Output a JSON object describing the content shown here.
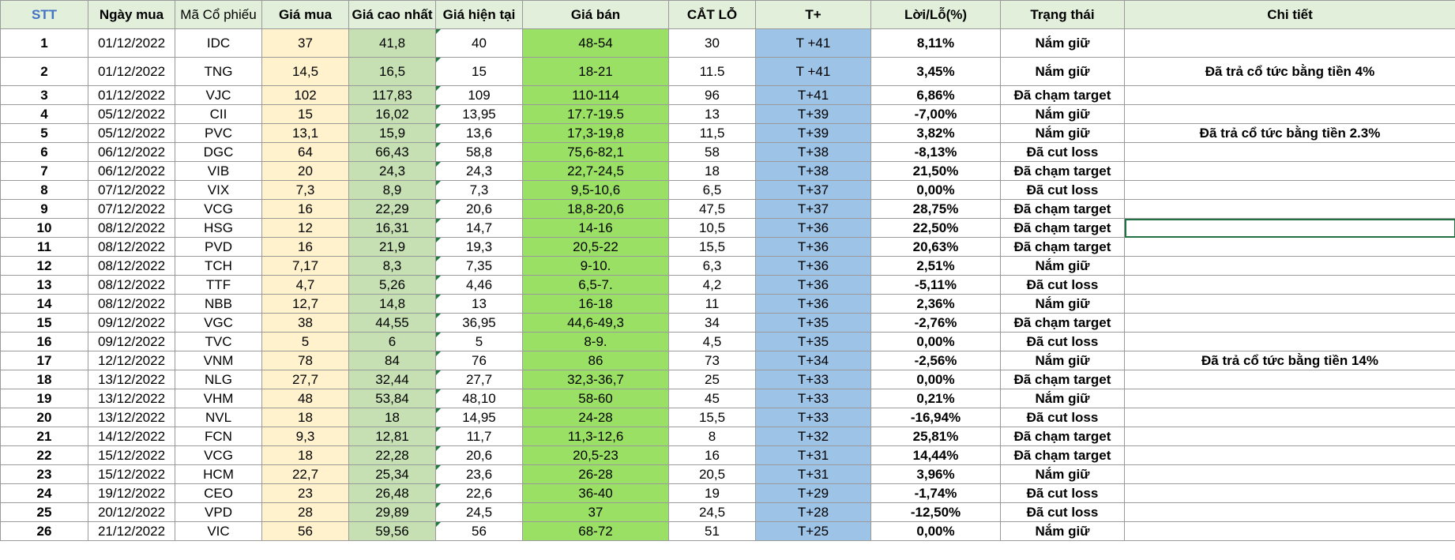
{
  "headers": [
    "STT",
    "Ngày mua",
    "Mã Cổ phiếu",
    "Giá mua",
    "Giá cao nhất",
    "Giá hiện tại",
    "Giá bán",
    "CẮT LỖ",
    "T+",
    "Lời/Lỗ(%)",
    "Trạng thái",
    "Chi tiết"
  ],
  "rows": [
    {
      "stt": "1",
      "date": "01/12/2022",
      "code": "IDC",
      "buy": "37",
      "high": "41,8",
      "current": "40",
      "sell": "48-54",
      "stop": "30",
      "t": "T +41",
      "pl": "8,11%",
      "pl_sign": "pos",
      "status": "Nắm giữ",
      "status_type": "hold",
      "detail": ""
    },
    {
      "stt": "2",
      "date": "01/12/2022",
      "code": "TNG",
      "buy": "14,5",
      "high": "16,5",
      "current": "15",
      "sell": "18-21",
      "stop": "11.5",
      "t": "T +41",
      "pl": "3,45%",
      "pl_sign": "pos",
      "status": "Nắm giữ",
      "status_type": "hold",
      "detail": "Đã trả cổ tức bằng tiền 4%"
    },
    {
      "stt": "3",
      "date": "01/12/2022",
      "code": "VJC",
      "buy": "102",
      "high": "117,83",
      "current": "109",
      "sell": "110-114",
      "stop": "96",
      "t": "T+41",
      "pl": "6,86%",
      "pl_sign": "pos",
      "status": "Đã chạm target",
      "status_type": "target",
      "detail": ""
    },
    {
      "stt": "4",
      "date": "05/12/2022",
      "code": "CII",
      "buy": "15",
      "high": "16,02",
      "current": "13,95",
      "sell": "17.7-19.5",
      "stop": "13",
      "t": "T+39",
      "pl": "-7,00%",
      "pl_sign": "neg",
      "status": "Nắm giữ",
      "status_type": "hold",
      "detail": ""
    },
    {
      "stt": "5",
      "date": "05/12/2022",
      "code": "PVC",
      "buy": "13,1",
      "high": "15,9",
      "current": "13,6",
      "sell": "17,3-19,8",
      "stop": "11,5",
      "t": "T+39",
      "pl": "3,82%",
      "pl_sign": "pos",
      "status": "Nắm giữ",
      "status_type": "hold",
      "detail": "Đã trả cổ tức bằng tiền 2.3%"
    },
    {
      "stt": "6",
      "date": "06/12/2022",
      "code": "DGC",
      "buy": "64",
      "high": "66,43",
      "current": "58,8",
      "sell": "75,6-82,1",
      "stop": "58",
      "t": "T+38",
      "pl": "-8,13%",
      "pl_sign": "neg",
      "status": "Đã cut loss",
      "status_type": "cut",
      "detail": ""
    },
    {
      "stt": "7",
      "date": "06/12/2022",
      "code": "VIB",
      "buy": "20",
      "high": "24,3",
      "current": "24,3",
      "sell": "22,7-24,5",
      "stop": "18",
      "t": "T+38",
      "pl": "21,50%",
      "pl_sign": "pos",
      "status": "Đã chạm target",
      "status_type": "target",
      "detail": ""
    },
    {
      "stt": "8",
      "date": "07/12/2022",
      "code": "VIX",
      "buy": "7,3",
      "high": "8,9",
      "current": "7,3",
      "sell": "9,5-10,6",
      "stop": "6,5",
      "t": "T+37",
      "pl": "0,00%",
      "pl_sign": "pos",
      "status": "Đã  cut loss",
      "status_type": "cut",
      "detail": ""
    },
    {
      "stt": "9",
      "date": "07/12/2022",
      "code": "VCG",
      "buy": "16",
      "high": "22,29",
      "current": "20,6",
      "sell": "18,8-20,6",
      "stop": "47,5",
      "t": "T+37",
      "pl": "28,75%",
      "pl_sign": "pos",
      "status": "Đã chạm target",
      "status_type": "target",
      "detail": ""
    },
    {
      "stt": "10",
      "date": "08/12/2022",
      "code": "HSG",
      "buy": "12",
      "high": "16,31",
      "current": "14,7",
      "sell": "14-16",
      "stop": "10,5",
      "t": "T+36",
      "pl": "22,50%",
      "pl_sign": "pos",
      "status": "Đã chạm target",
      "status_type": "target",
      "detail": ""
    },
    {
      "stt": "11",
      "date": "08/12/2022",
      "code": "PVD",
      "buy": "16",
      "high": "21,9",
      "current": "19,3",
      "sell": "20,5-22",
      "stop": "15,5",
      "t": "T+36",
      "pl": "20,63%",
      "pl_sign": "pos",
      "status": "Đã chạm target",
      "status_type": "target",
      "detail": ""
    },
    {
      "stt": "12",
      "date": "08/12/2022",
      "code": "TCH",
      "buy": "7,17",
      "high": "8,3",
      "current": "7,35",
      "sell": "9-10.",
      "stop": "6,3",
      "t": "T+36",
      "pl": "2,51%",
      "pl_sign": "pos",
      "status": "Nắm giữ",
      "status_type": "hold",
      "detail": ""
    },
    {
      "stt": "13",
      "date": "08/12/2022",
      "code": "TTF",
      "buy": "4,7",
      "high": "5,26",
      "current": "4,46",
      "sell": "6,5-7.",
      "stop": "4,2",
      "t": "T+36",
      "pl": "-5,11%",
      "pl_sign": "neg",
      "status": "Đã cut loss",
      "status_type": "cut",
      "detail": ""
    },
    {
      "stt": "14",
      "date": "08/12/2022",
      "code": "NBB",
      "buy": "12,7",
      "high": "14,8",
      "current": "13",
      "sell": "16-18",
      "stop": "11",
      "t": "T+36",
      "pl": "2,36%",
      "pl_sign": "pos",
      "status": "Nắm giữ",
      "status_type": "hold",
      "detail": ""
    },
    {
      "stt": "15",
      "date": "09/12/2022",
      "code": "VGC",
      "buy": "38",
      "high": "44,55",
      "current": "36,95",
      "sell": "44,6-49,3",
      "stop": "34",
      "t": "T+35",
      "pl": "-2,76%",
      "pl_sign": "neg",
      "status": "Đã chạm target",
      "status_type": "target",
      "detail": ""
    },
    {
      "stt": "16",
      "date": "09/12/2022",
      "code": "TVC",
      "buy": "5",
      "high": "6",
      "current": "5",
      "sell": "8-9.",
      "stop": "4,5",
      "t": "T+35",
      "pl": "0,00%",
      "pl_sign": "pos",
      "status": "Đã cut loss",
      "status_type": "cut",
      "detail": ""
    },
    {
      "stt": "17",
      "date": "12/12/2022",
      "code": "VNM",
      "buy": "78",
      "high": "84",
      "current": "76",
      "sell": "86",
      "stop": "73",
      "t": "T+34",
      "pl": "-2,56%",
      "pl_sign": "neg",
      "status": "Nắm giữ",
      "status_type": "hold",
      "detail": "Đã trả cổ tức bằng tiền 14%"
    },
    {
      "stt": "18",
      "date": "13/12/2022",
      "code": "NLG",
      "buy": "27,7",
      "high": "32,44",
      "current": "27,7",
      "sell": "32,3-36,7",
      "stop": "25",
      "t": "T+33",
      "pl": "0,00%",
      "pl_sign": "pos",
      "status": "Đã chạm target",
      "status_type": "target",
      "detail": ""
    },
    {
      "stt": "19",
      "date": "13/12/2022",
      "code": "VHM",
      "buy": "48",
      "high": "53,84",
      "current": "48,10",
      "sell": "58-60",
      "stop": "45",
      "t": "T+33",
      "pl": "0,21%",
      "pl_sign": "pos",
      "status": "Nắm giữ",
      "status_type": "hold",
      "detail": ""
    },
    {
      "stt": "20",
      "date": "13/12/2022",
      "code": "NVL",
      "buy": "18",
      "high": "18",
      "current": "14,95",
      "sell": "24-28",
      "stop": "15,5",
      "t": "T+33",
      "pl": "-16,94%",
      "pl_sign": "neg",
      "status": "Đã cut loss",
      "status_type": "cut",
      "detail": ""
    },
    {
      "stt": "21",
      "date": "14/12/2022",
      "code": "FCN",
      "buy": "9,3",
      "high": "12,81",
      "current": "11,7",
      "sell": "11,3-12,6",
      "stop": "8",
      "t": "T+32",
      "pl": "25,81%",
      "pl_sign": "pos",
      "status": "Đã chạm target",
      "status_type": "target",
      "detail": ""
    },
    {
      "stt": "22",
      "date": "15/12/2022",
      "code": "VCG",
      "buy": "18",
      "high": "22,28",
      "current": "20,6",
      "sell": "20,5-23",
      "stop": "16",
      "t": "T+31",
      "pl": "14,44%",
      "pl_sign": "pos",
      "status": "Đã chạm target",
      "status_type": "target",
      "detail": ""
    },
    {
      "stt": "23",
      "date": "15/12/2022",
      "code": "HCM",
      "buy": "22,7",
      "high": "25,34",
      "current": "23,6",
      "sell": "26-28",
      "stop": "20,5",
      "t": "T+31",
      "pl": "3,96%",
      "pl_sign": "pos",
      "status": "Nắm giữ",
      "status_type": "hold",
      "detail": ""
    },
    {
      "stt": "24",
      "date": "19/12/2022",
      "code": "CEO",
      "buy": "23",
      "high": "26,48",
      "current": "22,6",
      "sell": "36-40",
      "stop": "19",
      "t": "T+29",
      "pl": "-1,74%",
      "pl_sign": "neg",
      "status": "Đã cut loss",
      "status_type": "cut",
      "detail": ""
    },
    {
      "stt": "25",
      "date": "20/12/2022",
      "code": "VPD",
      "buy": "28",
      "high": "29,89",
      "current": "24,5",
      "sell": "37",
      "stop": "24,5",
      "t": "T+28",
      "pl": "-12,50%",
      "pl_sign": "neg",
      "status": "Đã cut loss",
      "status_type": "cut",
      "detail": ""
    },
    {
      "stt": "26",
      "date": "21/12/2022",
      "code": "VIC",
      "buy": "56",
      "high": "59,56",
      "current": "56",
      "sell": "68-72",
      "stop": "51",
      "t": "T+25",
      "pl": "0,00%",
      "pl_sign": "pos",
      "status": "Nắm giữ",
      "status_type": "hold",
      "detail": ""
    }
  ],
  "colors": {
    "header_bg": "#e2efda",
    "buy_bg": "#fff2cc",
    "high_bg": "#c6e0b4",
    "sell_bg": "#99e065",
    "tplus_bg": "#9dc3e6",
    "positive": "#00b050",
    "negative": "#ff0000",
    "target": "#7030a0",
    "stt_blue": "#2f5fb3"
  }
}
